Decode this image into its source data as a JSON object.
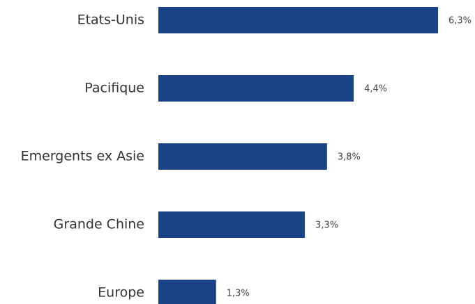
{
  "chart_data": {
    "type": "bar",
    "orientation": "horizontal",
    "categories": [
      "Etats-Unis",
      "Pacifique",
      "Emergents ex Asie",
      "Grande Chine",
      "Europe"
    ],
    "values": [
      6.3,
      4.4,
      3.8,
      3.3,
      1.3
    ],
    "value_labels": [
      "6,3%",
      "4,4%",
      "3,8%",
      "3,3%",
      "1,3%"
    ],
    "color": "#1a4388"
  }
}
